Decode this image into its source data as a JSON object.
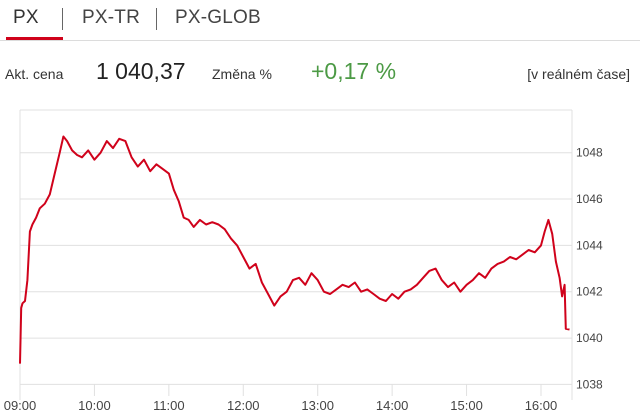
{
  "tabs": [
    {
      "label": "PX",
      "active": true
    },
    {
      "label": "PX-TR",
      "active": false
    },
    {
      "label": "PX-GLOB",
      "active": false
    }
  ],
  "stats": {
    "price_label": "Akt. cena",
    "price_value": "1 040,37",
    "change_label": "Změna %",
    "change_value": "+0,17 %",
    "realtime_label": "[v reálném čase]"
  },
  "colors": {
    "accent": "#d0021b",
    "line": "#d0021b",
    "positive": "#4c9a45",
    "grid": "#e0e0e0"
  },
  "chart_data": {
    "type": "line",
    "title": "",
    "xlabel": "",
    "ylabel": "",
    "x_ticks": [
      "09:00",
      "10:00",
      "11:00",
      "12:00",
      "13:00",
      "14:00",
      "15:00",
      "16:00"
    ],
    "y_ticks": [
      "1038",
      "1040",
      "1042",
      "1044",
      "1046",
      "1048"
    ],
    "xlim": [
      "09:00",
      "16:25"
    ],
    "ylim": [
      1037.5,
      1049.8
    ],
    "grid": "horizontal",
    "series": [
      {
        "values": [
          [
            "09:00",
            1038.9
          ],
          [
            "09:01",
            1041.3
          ],
          [
            "09:02",
            1041.5
          ],
          [
            "09:04",
            1041.6
          ],
          [
            "09:06",
            1042.5
          ],
          [
            "09:08",
            1044.6
          ],
          [
            "09:10",
            1044.9
          ],
          [
            "09:13",
            1045.2
          ],
          [
            "09:16",
            1045.6
          ],
          [
            "09:20",
            1045.8
          ],
          [
            "09:24",
            1046.2
          ],
          [
            "09:28",
            1047.1
          ],
          [
            "09:32",
            1048.0
          ],
          [
            "09:35",
            1048.7
          ],
          [
            "09:38",
            1048.5
          ],
          [
            "09:42",
            1048.1
          ],
          [
            "09:46",
            1047.9
          ],
          [
            "09:50",
            1047.8
          ],
          [
            "09:55",
            1048.1
          ],
          [
            "10:00",
            1047.7
          ],
          [
            "10:05",
            1048.0
          ],
          [
            "10:10",
            1048.5
          ],
          [
            "10:15",
            1048.2
          ],
          [
            "10:20",
            1048.6
          ],
          [
            "10:25",
            1048.5
          ],
          [
            "10:30",
            1047.8
          ],
          [
            "10:35",
            1047.4
          ],
          [
            "10:40",
            1047.7
          ],
          [
            "10:45",
            1047.2
          ],
          [
            "10:50",
            1047.5
          ],
          [
            "10:55",
            1047.3
          ],
          [
            "11:00",
            1047.1
          ],
          [
            "11:04",
            1046.4
          ],
          [
            "11:08",
            1045.9
          ],
          [
            "11:12",
            1045.2
          ],
          [
            "11:16",
            1045.1
          ],
          [
            "11:20",
            1044.8
          ],
          [
            "11:25",
            1045.1
          ],
          [
            "11:30",
            1044.9
          ],
          [
            "11:35",
            1045.0
          ],
          [
            "11:40",
            1044.9
          ],
          [
            "11:45",
            1044.7
          ],
          [
            "11:50",
            1044.3
          ],
          [
            "11:55",
            1044.0
          ],
          [
            "12:00",
            1043.5
          ],
          [
            "12:05",
            1043.0
          ],
          [
            "12:10",
            1043.2
          ],
          [
            "12:15",
            1042.4
          ],
          [
            "12:20",
            1041.9
          ],
          [
            "12:25",
            1041.4
          ],
          [
            "12:30",
            1041.8
          ],
          [
            "12:35",
            1042.0
          ],
          [
            "12:40",
            1042.5
          ],
          [
            "12:45",
            1042.6
          ],
          [
            "12:50",
            1042.3
          ],
          [
            "12:55",
            1042.8
          ],
          [
            "13:00",
            1042.5
          ],
          [
            "13:05",
            1042.0
          ],
          [
            "13:10",
            1041.9
          ],
          [
            "13:15",
            1042.1
          ],
          [
            "13:20",
            1042.3
          ],
          [
            "13:25",
            1042.2
          ],
          [
            "13:30",
            1042.4
          ],
          [
            "13:35",
            1042.0
          ],
          [
            "13:40",
            1042.1
          ],
          [
            "13:45",
            1041.9
          ],
          [
            "13:50",
            1041.7
          ],
          [
            "13:55",
            1041.6
          ],
          [
            "14:00",
            1041.9
          ],
          [
            "14:05",
            1041.7
          ],
          [
            "14:10",
            1042.0
          ],
          [
            "14:15",
            1042.1
          ],
          [
            "14:20",
            1042.3
          ],
          [
            "14:25",
            1042.6
          ],
          [
            "14:30",
            1042.9
          ],
          [
            "14:35",
            1043.0
          ],
          [
            "14:40",
            1042.5
          ],
          [
            "14:45",
            1042.2
          ],
          [
            "14:50",
            1042.4
          ],
          [
            "14:55",
            1042.0
          ],
          [
            "15:00",
            1042.3
          ],
          [
            "15:05",
            1042.5
          ],
          [
            "15:10",
            1042.8
          ],
          [
            "15:15",
            1042.6
          ],
          [
            "15:20",
            1043.0
          ],
          [
            "15:25",
            1043.2
          ],
          [
            "15:30",
            1043.3
          ],
          [
            "15:35",
            1043.5
          ],
          [
            "15:40",
            1043.4
          ],
          [
            "15:45",
            1043.6
          ],
          [
            "15:50",
            1043.8
          ],
          [
            "15:55",
            1043.7
          ],
          [
            "16:00",
            1044.0
          ],
          [
            "16:03",
            1044.6
          ],
          [
            "16:06",
            1045.1
          ],
          [
            "16:09",
            1044.5
          ],
          [
            "16:12",
            1043.3
          ],
          [
            "16:15",
            1042.6
          ],
          [
            "16:17",
            1041.8
          ],
          [
            "16:19",
            1042.3
          ],
          [
            "16:20",
            1040.4
          ],
          [
            "16:23",
            1040.37
          ]
        ]
      }
    ]
  }
}
